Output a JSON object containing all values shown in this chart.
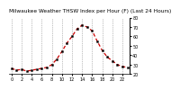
{
  "title": "Milwaukee Weather THSW Index per Hour (F) (Last 24 Hours)",
  "hours": [
    0,
    1,
    2,
    3,
    4,
    5,
    6,
    7,
    8,
    9,
    10,
    11,
    12,
    13,
    14,
    15,
    16,
    17,
    18,
    19,
    20,
    21,
    22,
    23
  ],
  "values": [
    26,
    24,
    25,
    23,
    24,
    25,
    26,
    27,
    30,
    36,
    44,
    53,
    60,
    68,
    72,
    70,
    66,
    55,
    45,
    38,
    34,
    30,
    28,
    27
  ],
  "line_color": "#cc0000",
  "marker_color": "#000000",
  "bg_color": "#ffffff",
  "grid_color": "#888888",
  "ylim_min": 20,
  "ylim_max": 80,
  "yticks": [
    20,
    30,
    40,
    50,
    60,
    70,
    80
  ],
  "ytick_labels": [
    "20",
    "30",
    "40",
    "50",
    "60",
    "70",
    "80"
  ],
  "xticks": [
    0,
    2,
    4,
    6,
    8,
    10,
    12,
    14,
    16,
    18,
    20,
    22
  ],
  "title_fontsize": 4.2,
  "tick_fontsize": 3.5
}
